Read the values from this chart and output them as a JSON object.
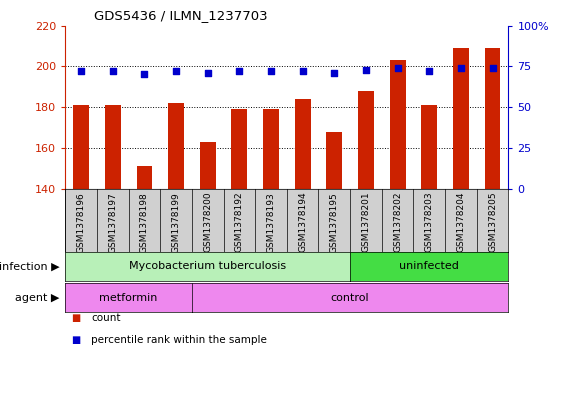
{
  "title": "GDS5436 / ILMN_1237703",
  "samples": [
    "GSM1378196",
    "GSM1378197",
    "GSM1378198",
    "GSM1378199",
    "GSM1378200",
    "GSM1378192",
    "GSM1378193",
    "GSM1378194",
    "GSM1378195",
    "GSM1378201",
    "GSM1378202",
    "GSM1378203",
    "GSM1378204",
    "GSM1378205"
  ],
  "counts": [
    181,
    181,
    151,
    182,
    163,
    179,
    179,
    184,
    168,
    188,
    203,
    181,
    209,
    209
  ],
  "percentiles": [
    72,
    72,
    70,
    72,
    71,
    72,
    72,
    72,
    71,
    73,
    74,
    72,
    74,
    74
  ],
  "ylim_left": [
    140,
    220
  ],
  "ylim_right": [
    0,
    100
  ],
  "yticks_left": [
    140,
    160,
    180,
    200,
    220
  ],
  "yticks_right": [
    0,
    25,
    50,
    75,
    100
  ],
  "bar_color": "#cc2200",
  "dot_color": "#0000cc",
  "bg_color": "#ffffff",
  "plot_bg": "#ffffff",
  "tick_area_bg": "#d0d0d0",
  "infection_groups": [
    {
      "label": "Mycobacterium tuberculosis",
      "start": 0,
      "end": 9,
      "color": "#b8f0b8"
    },
    {
      "label": "uninfected",
      "start": 9,
      "end": 14,
      "color": "#44dd44"
    }
  ],
  "agent_groups": [
    {
      "label": "metformin",
      "start": 0,
      "end": 4,
      "color": "#ee88ee"
    },
    {
      "label": "control",
      "start": 4,
      "end": 14,
      "color": "#ee88ee"
    }
  ],
  "infection_label": "infection",
  "agent_label": "agent",
  "legend_count_label": "count",
  "legend_pct_label": "percentile rank within the sample"
}
